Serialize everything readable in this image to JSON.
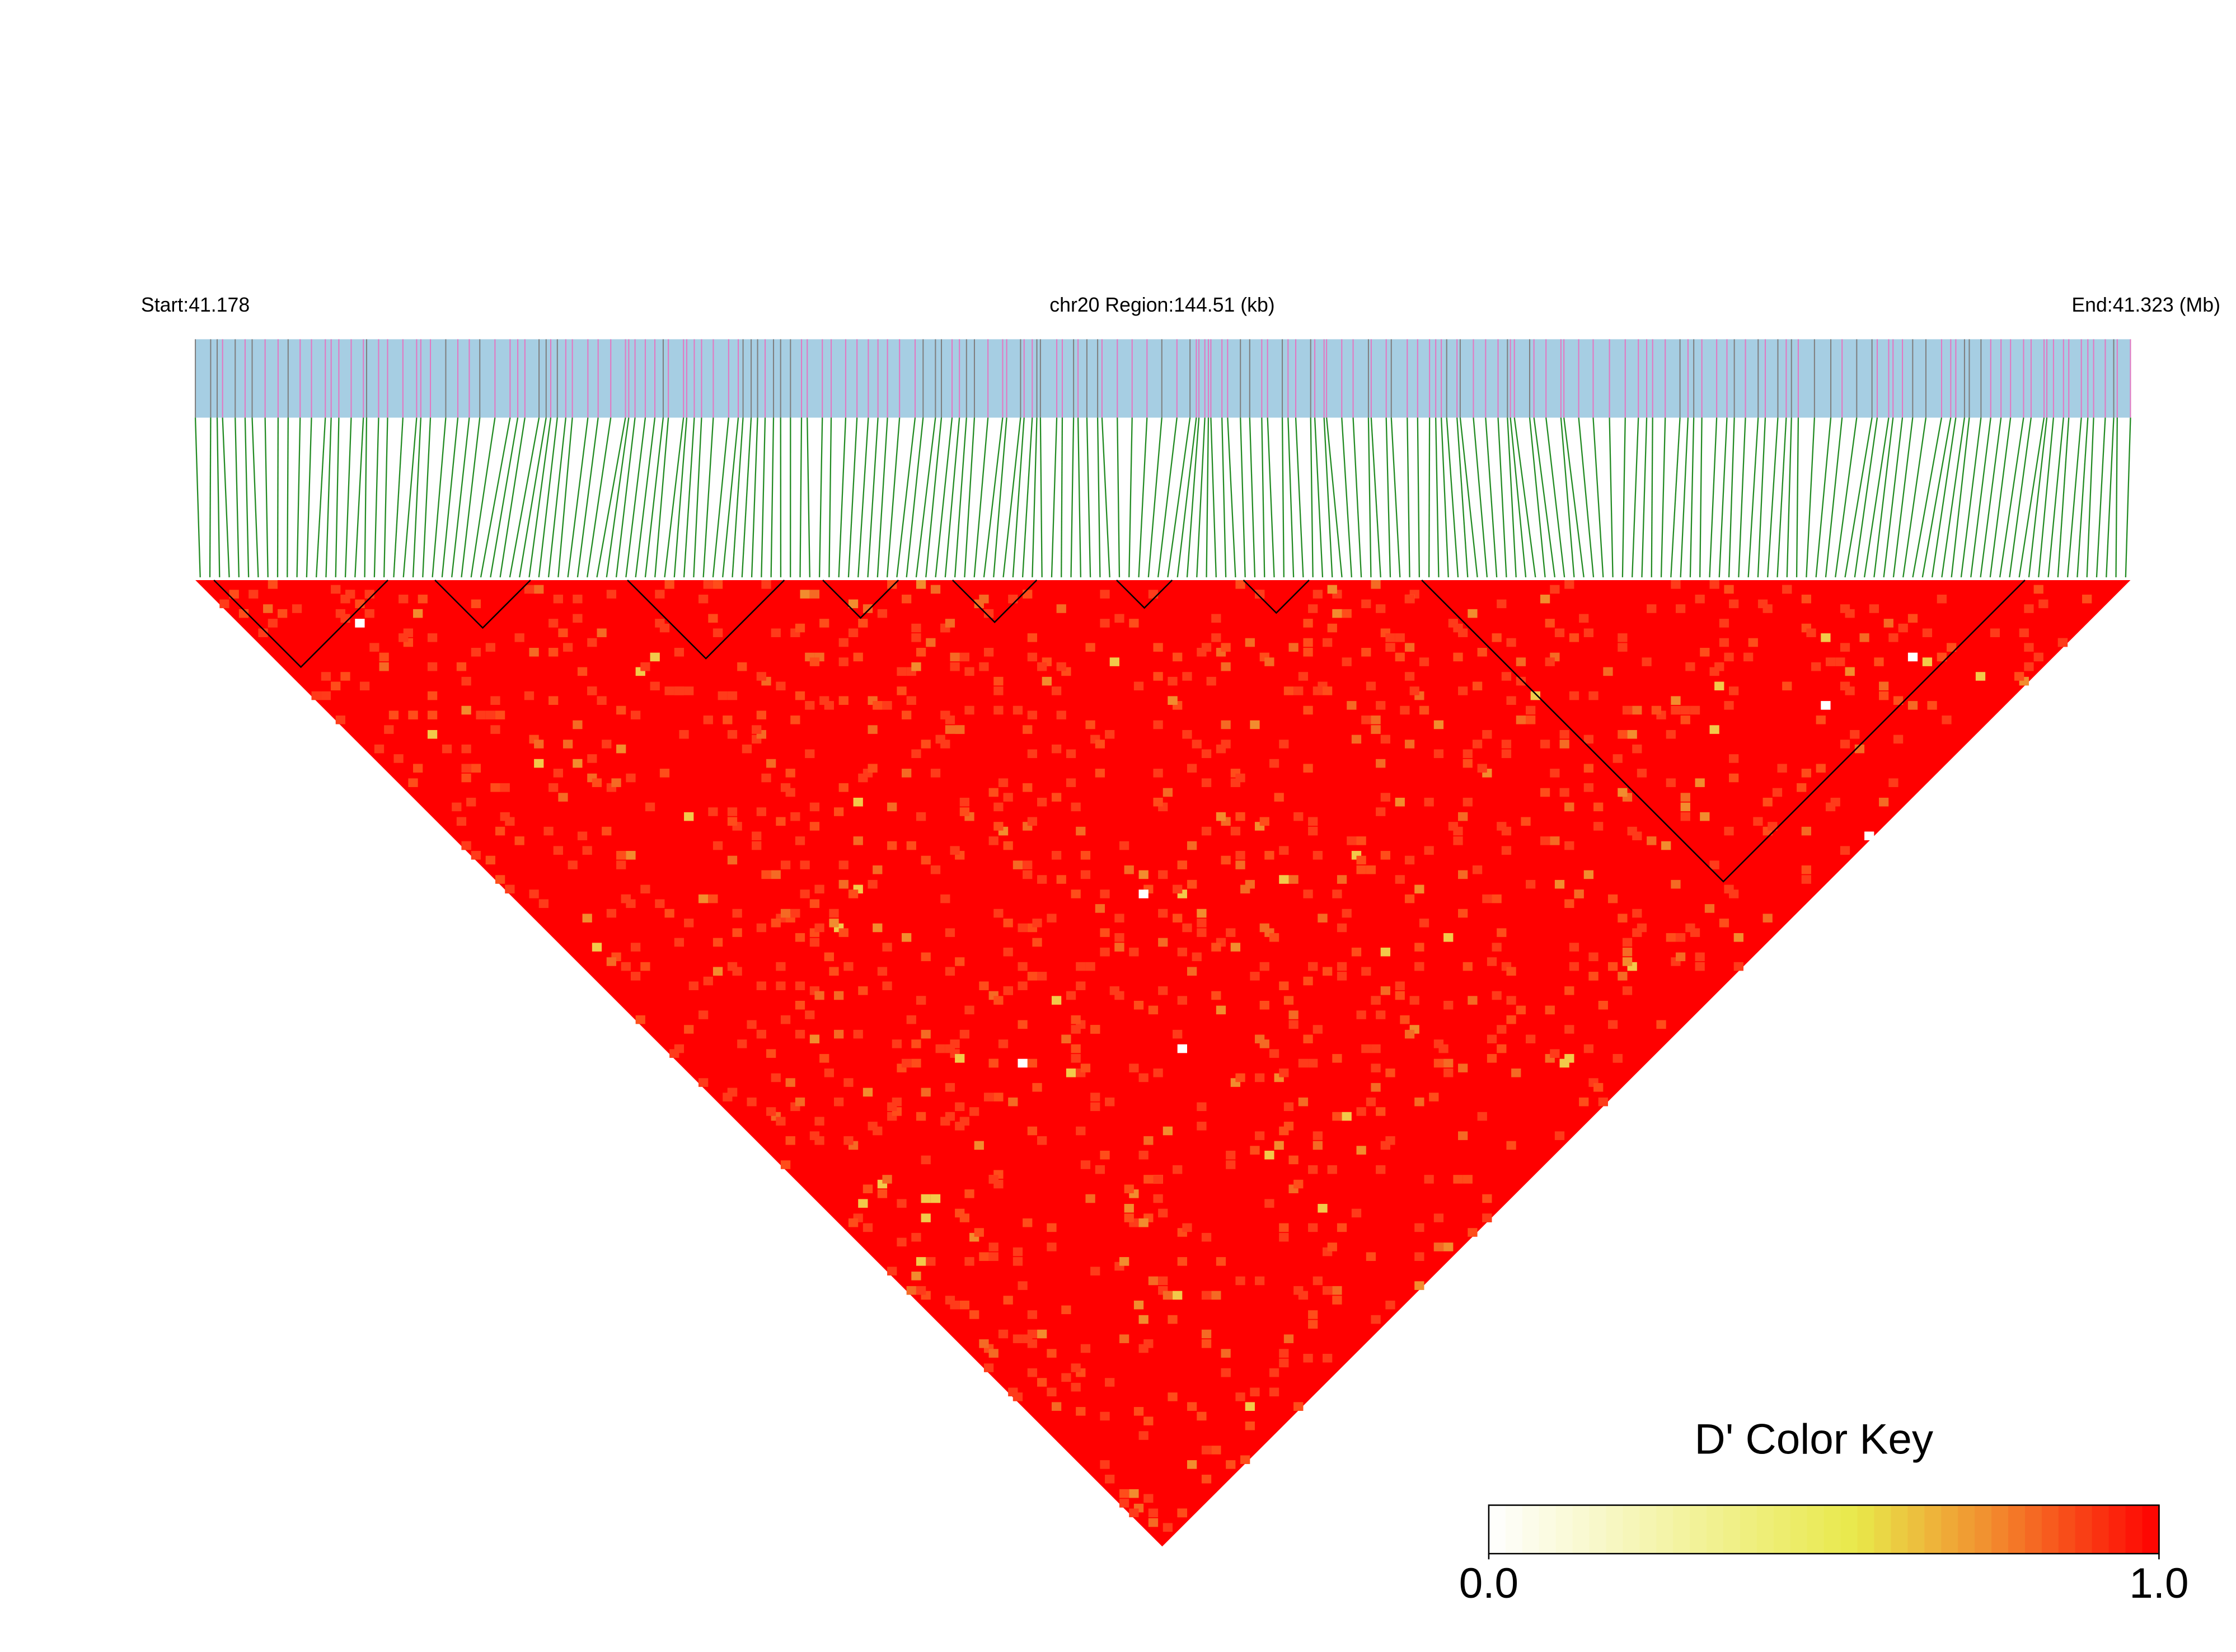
{
  "chart_data": {
    "type": "ld-heatmap",
    "start_label": "Start:41.178",
    "region_label": "chr20 Region:144.51 (kb)",
    "end_label": "End:41.323 (Mb)",
    "colorbar": {
      "title": "D' Color Key",
      "clim": [
        0,
        1
      ],
      "ticks": [
        {
          "value": 0,
          "label": "0.0"
        },
        {
          "value": 1,
          "label": "1.0"
        }
      ]
    }
  }
}
